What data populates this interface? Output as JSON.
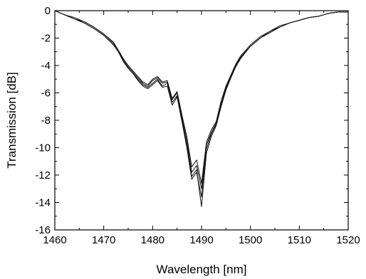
{
  "chart_data": {
    "type": "line",
    "title": "",
    "xlabel": "Wavelength [nm]",
    "ylabel": "Transmission [dB]",
    "xlim": [
      1460,
      1520
    ],
    "ylim": [
      -16,
      0
    ],
    "xticks": [
      1460,
      1470,
      1480,
      1490,
      1500,
      1510,
      1520
    ],
    "yticks": [
      0,
      -2,
      -4,
      -6,
      -8,
      -10,
      -12,
      -14,
      -16
    ],
    "grid": false,
    "legend": "none",
    "series": [
      {
        "x": [
          1460,
          1462,
          1464,
          1466,
          1468,
          1470,
          1472,
          1473,
          1474,
          1475,
          1476,
          1477,
          1478,
          1479,
          1480,
          1481,
          1482,
          1483,
          1484,
          1485,
          1486,
          1487,
          1488,
          1489,
          1490,
          1491,
          1492,
          1493,
          1494,
          1495,
          1496,
          1497,
          1498,
          1500,
          1502,
          1504,
          1506,
          1508,
          1510,
          1512,
          1514,
          1516,
          1518,
          1520
        ],
        "y": [
          0,
          -0.3,
          -0.6,
          -0.8,
          -1.2,
          -1.7,
          -2.4,
          -2.9,
          -3.6,
          -4.1,
          -4.5,
          -4.9,
          -5.3,
          -5.5,
          -5.1,
          -4.9,
          -5.3,
          -5.2,
          -6.5,
          -6.0,
          -7.8,
          -9.5,
          -11.8,
          -11.3,
          -13.0,
          -9.8,
          -8.9,
          -8.2,
          -6.8,
          -5.6,
          -4.8,
          -4.0,
          -3.4,
          -2.6,
          -2.0,
          -1.5,
          -1.2,
          -0.9,
          -0.7,
          -0.5,
          -0.4,
          -0.2,
          -0.1,
          -0.1
        ]
      },
      {
        "x": [
          1460,
          1462,
          1464,
          1466,
          1468,
          1470,
          1472,
          1473,
          1474,
          1475,
          1476,
          1477,
          1478,
          1479,
          1480,
          1481,
          1482,
          1483,
          1484,
          1485,
          1486,
          1487,
          1488,
          1489,
          1490,
          1491,
          1492,
          1493,
          1494,
          1495,
          1496,
          1497,
          1498,
          1500,
          1502,
          1504,
          1506,
          1508,
          1510,
          1512,
          1514,
          1516,
          1518,
          1520
        ],
        "y": [
          0,
          -0.3,
          -0.6,
          -0.9,
          -1.3,
          -1.8,
          -2.5,
          -3.0,
          -3.7,
          -4.2,
          -4.6,
          -5.0,
          -5.4,
          -5.6,
          -5.3,
          -5.0,
          -5.5,
          -5.3,
          -6.7,
          -6.2,
          -8.0,
          -9.8,
          -12.1,
          -11.6,
          -14.3,
          -10.4,
          -9.2,
          -8.4,
          -7.0,
          -5.8,
          -4.9,
          -4.1,
          -3.5,
          -2.6,
          -2.0,
          -1.6,
          -1.2,
          -0.9,
          -0.7,
          -0.5,
          -0.4,
          -0.2,
          -0.1,
          -0.1
        ]
      },
      {
        "x": [
          1460,
          1462,
          1464,
          1466,
          1468,
          1470,
          1472,
          1473,
          1474,
          1475,
          1476,
          1477,
          1478,
          1479,
          1480,
          1481,
          1482,
          1483,
          1484,
          1485,
          1486,
          1487,
          1488,
          1489,
          1490,
          1491,
          1492,
          1493,
          1494,
          1495,
          1496,
          1497,
          1498,
          1500,
          1502,
          1504,
          1506,
          1508,
          1510,
          1512,
          1514,
          1516,
          1518,
          1520
        ],
        "y": [
          0,
          -0.3,
          -0.5,
          -0.8,
          -1.2,
          -1.7,
          -2.3,
          -2.9,
          -3.5,
          -4.0,
          -4.4,
          -4.8,
          -5.2,
          -5.4,
          -5.0,
          -4.8,
          -5.2,
          -5.1,
          -6.4,
          -5.9,
          -7.6,
          -9.2,
          -11.4,
          -10.9,
          -12.6,
          -9.6,
          -8.7,
          -8.1,
          -6.6,
          -5.5,
          -4.7,
          -3.9,
          -3.3,
          -2.5,
          -1.9,
          -1.5,
          -1.1,
          -0.9,
          -0.7,
          -0.5,
          -0.4,
          -0.2,
          -0.1,
          -0.1
        ]
      },
      {
        "x": [
          1460,
          1462,
          1464,
          1466,
          1468,
          1470,
          1472,
          1473,
          1474,
          1475,
          1476,
          1477,
          1478,
          1479,
          1480,
          1481,
          1482,
          1483,
          1484,
          1485,
          1486,
          1487,
          1488,
          1489,
          1490,
          1491,
          1492,
          1493,
          1494,
          1495,
          1496,
          1497,
          1498,
          1500,
          1502,
          1504,
          1506,
          1508,
          1510,
          1512,
          1514,
          1516,
          1518,
          1520
        ],
        "y": [
          0,
          -0.3,
          -0.6,
          -0.9,
          -1.3,
          -1.8,
          -2.5,
          -3.0,
          -3.7,
          -4.2,
          -4.6,
          -5.1,
          -5.5,
          -5.7,
          -5.4,
          -5.1,
          -5.6,
          -5.5,
          -6.9,
          -6.3,
          -8.1,
          -10.0,
          -12.3,
          -11.8,
          -13.6,
          -10.1,
          -9.0,
          -8.3,
          -6.9,
          -5.7,
          -4.8,
          -4.0,
          -3.4,
          -2.6,
          -2.0,
          -1.6,
          -1.2,
          -0.9,
          -0.7,
          -0.5,
          -0.4,
          -0.2,
          -0.1,
          -0.1
        ]
      }
    ]
  }
}
